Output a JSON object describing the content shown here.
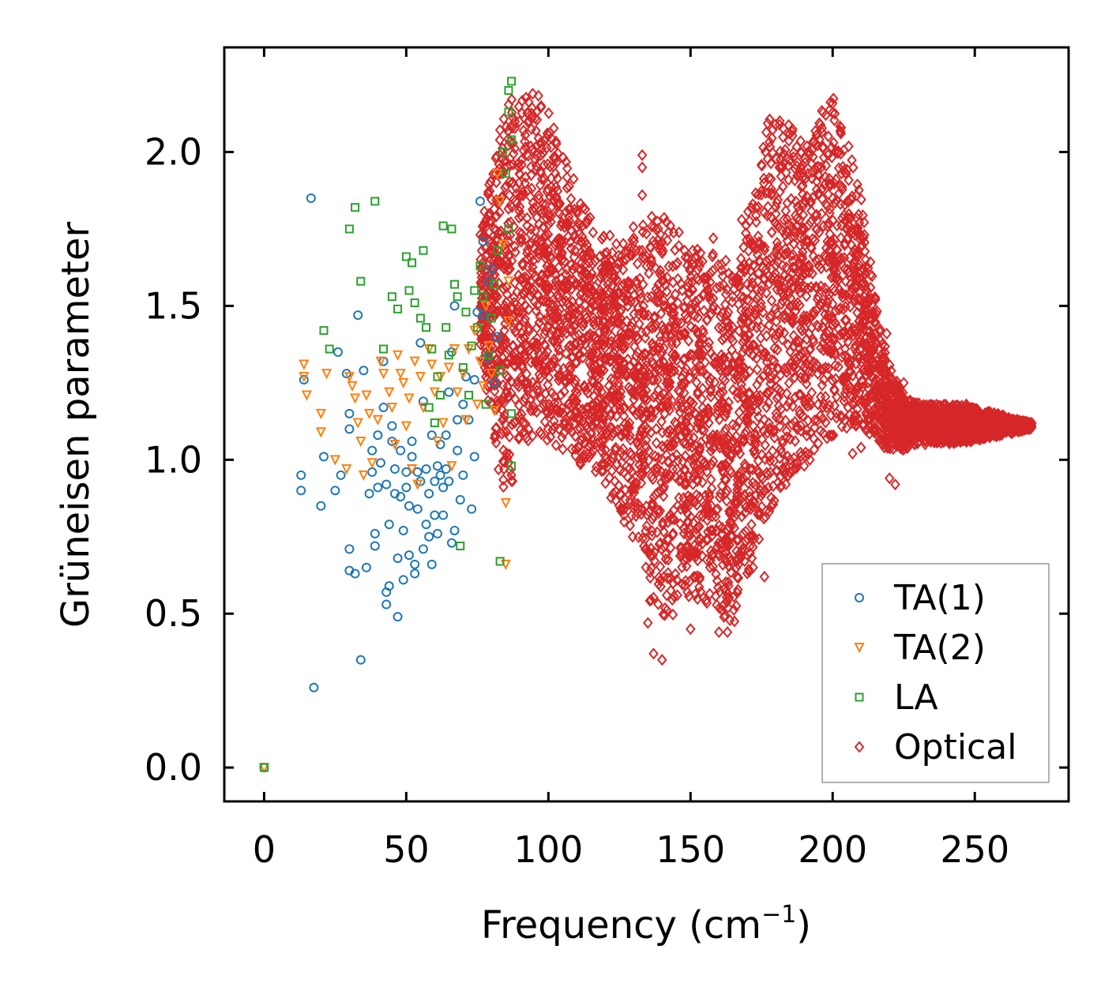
{
  "chart_data": {
    "type": "scatter",
    "title": "",
    "xlabel": "Frequency (cm",
    "xlabel_sup": "−1",
    "xlabel_close": ")",
    "ylabel": "Grüneisen parameter",
    "xlim": [
      -14,
      283
    ],
    "ylim": [
      -0.11,
      2.34
    ],
    "xticks": [
      0,
      50,
      100,
      150,
      200,
      250
    ],
    "xtick_labels": [
      "0",
      "50",
      "100",
      "150",
      "200",
      "250"
    ],
    "yticks": [
      0.0,
      0.5,
      1.0,
      1.5,
      2.0
    ],
    "ytick_labels": [
      "0.0",
      "0.5",
      "1.0",
      "1.5",
      "2.0"
    ],
    "legend_position": "lower-right",
    "series": [
      {
        "name": "TA(1)",
        "marker": "circle",
        "color": "#1f77b4",
        "points": [
          [
            0,
            0
          ],
          [
            16.5,
            1.85
          ],
          [
            17.5,
            0.26
          ],
          [
            14,
            1.26
          ],
          [
            13,
            0.95
          ],
          [
            13,
            0.9
          ],
          [
            20,
            0.85
          ],
          [
            21,
            1.01
          ],
          [
            25,
            0.9
          ],
          [
            26,
            1.35
          ],
          [
            27,
            0.95
          ],
          [
            29,
            1.28
          ],
          [
            30,
            1.15
          ],
          [
            30,
            1.1
          ],
          [
            30,
            0.71
          ],
          [
            30,
            0.64
          ],
          [
            32,
            0.63
          ],
          [
            33,
            1.47
          ],
          [
            34,
            0.35
          ],
          [
            35,
            1.29
          ],
          [
            36,
            0.65
          ],
          [
            37,
            0.89
          ],
          [
            38,
            1.03
          ],
          [
            38,
            0.96
          ],
          [
            39,
            0.76
          ],
          [
            39,
            0.72
          ],
          [
            40,
            0.91
          ],
          [
            40,
            1.08
          ],
          [
            41,
            0.99
          ],
          [
            42,
            1.32
          ],
          [
            42,
            1.17
          ],
          [
            43,
            0.53
          ],
          [
            43,
            0.92
          ],
          [
            43,
            0.57
          ],
          [
            44,
            0.79
          ],
          [
            44,
            0.59
          ],
          [
            45,
            1.06
          ],
          [
            45,
            1.11
          ],
          [
            46,
            0.89
          ],
          [
            46,
            0.97
          ],
          [
            47,
            0.49
          ],
          [
            47,
            0.68
          ],
          [
            48,
            0.88
          ],
          [
            48,
            1.03
          ],
          [
            49,
            0.61
          ],
          [
            49,
            0.77
          ],
          [
            50,
            0.91
          ],
          [
            50,
            0.96
          ],
          [
            51,
            0.69
          ],
          [
            51,
            0.85
          ],
          [
            52,
            1.06
          ],
          [
            52,
            1.01
          ],
          [
            53,
            0.63
          ],
          [
            53,
            0.66
          ],
          [
            54,
            0.84
          ],
          [
            54,
            0.96
          ],
          [
            55,
            1.38
          ],
          [
            55,
            0.93
          ],
          [
            56,
            1.19
          ],
          [
            56,
            0.71
          ],
          [
            57,
            0.79
          ],
          [
            57,
            0.97
          ],
          [
            58,
            0.75
          ],
          [
            58,
            0.89
          ],
          [
            59,
            0.66
          ],
          [
            59,
            1.08
          ],
          [
            60,
            0.93
          ],
          [
            60,
            0.82
          ],
          [
            61,
            0.98
          ],
          [
            61,
            0.76
          ],
          [
            62,
            0.95
          ],
          [
            62,
            1.05
          ],
          [
            63,
            0.91
          ],
          [
            63,
            0.82
          ],
          [
            64,
            1.08
          ],
          [
            64,
            0.97
          ],
          [
            65,
            1.22
          ],
          [
            65,
            0.93
          ],
          [
            66,
            1.35
          ],
          [
            66,
            0.73
          ],
          [
            67,
            1.5
          ],
          [
            67,
            0.77
          ],
          [
            68,
            1.03
          ],
          [
            68,
            1.13
          ],
          [
            69,
            0.87
          ],
          [
            70,
            1.18
          ],
          [
            70,
            0.95
          ],
          [
            71,
            1.27
          ],
          [
            72,
            1.13
          ],
          [
            73,
            0.84
          ],
          [
            74,
            1.26
          ],
          [
            74,
            1.01
          ],
          [
            75,
            1.48
          ],
          [
            76,
            1.84
          ],
          [
            77,
            1.71
          ],
          [
            77,
            1.47
          ],
          [
            78,
            1.33
          ],
          [
            79,
            1.58
          ],
          [
            80,
            1.62
          ],
          [
            81,
            1.25
          ],
          [
            82,
            1.4
          ]
        ]
      },
      {
        "name": "TA(2)",
        "marker": "triangle-down",
        "color": "#ff7f0e",
        "points": [
          [
            0,
            0
          ],
          [
            14,
            1.31
          ],
          [
            14,
            1.27
          ],
          [
            15,
            1.21
          ],
          [
            20,
            1.15
          ],
          [
            20,
            1.09
          ],
          [
            22,
            1.28
          ],
          [
            25,
            1.0
          ],
          [
            29,
            0.97
          ],
          [
            30,
            1.27
          ],
          [
            31,
            1.24
          ],
          [
            32,
            1.2
          ],
          [
            33,
            1.12
          ],
          [
            34,
            1.06
          ],
          [
            35,
            0.95
          ],
          [
            36,
            1.21
          ],
          [
            37,
            1.15
          ],
          [
            38,
            0.99
          ],
          [
            40,
            1.13
          ],
          [
            41,
            1.32
          ],
          [
            42,
            1.28
          ],
          [
            44,
            1.22
          ],
          [
            45,
            1.17
          ],
          [
            46,
            1.05
          ],
          [
            47,
            1.34
          ],
          [
            48,
            1.28
          ],
          [
            49,
            1.25
          ],
          [
            50,
            1.11
          ],
          [
            51,
            1.2
          ],
          [
            52,
            0.97
          ],
          [
            53,
            1.32
          ],
          [
            54,
            0.92
          ],
          [
            55,
            1.27
          ],
          [
            56,
            1.17
          ],
          [
            58,
            1.36
          ],
          [
            59,
            1.31
          ],
          [
            60,
            1.22
          ],
          [
            61,
            1.06
          ],
          [
            62,
            1.27
          ],
          [
            63,
            1.12
          ],
          [
            65,
            1.3
          ],
          [
            66,
            0.98
          ],
          [
            67,
            1.36
          ],
          [
            68,
            1.22
          ],
          [
            70,
            1.28
          ],
          [
            71,
            1.13
          ],
          [
            72,
            1.36
          ],
          [
            74,
            1.42
          ],
          [
            75,
            1.18
          ],
          [
            76,
            1.32
          ],
          [
            77,
            1.24
          ],
          [
            78,
            1.5
          ],
          [
            79,
            1.37
          ],
          [
            80,
            1.28
          ],
          [
            81,
            1.16
          ],
          [
            82,
            1.93
          ],
          [
            83,
            1.84
          ],
          [
            84,
            1.7
          ],
          [
            85,
            0.66
          ],
          [
            85,
            0.86
          ],
          [
            86,
            1.45
          ],
          [
            86,
            1.58
          ]
        ]
      },
      {
        "name": "LA",
        "marker": "square",
        "color": "#2ca02c",
        "points": [
          [
            0,
            0
          ],
          [
            21,
            1.42
          ],
          [
            23,
            1.36
          ],
          [
            30,
            1.75
          ],
          [
            32,
            1.82
          ],
          [
            34,
            1.58
          ],
          [
            39,
            1.84
          ],
          [
            42,
            1.36
          ],
          [
            45,
            1.53
          ],
          [
            47,
            1.49
          ],
          [
            50,
            1.66
          ],
          [
            51,
            1.55
          ],
          [
            52,
            1.64
          ],
          [
            53,
            1.51
          ],
          [
            55,
            1.46
          ],
          [
            56,
            1.68
          ],
          [
            57,
            1.43
          ],
          [
            58,
            1.17
          ],
          [
            59,
            1.36
          ],
          [
            60,
            1.12
          ],
          [
            61,
            1.27
          ],
          [
            62,
            1.21
          ],
          [
            63,
            1.76
          ],
          [
            64,
            1.43
          ],
          [
            65,
            1.34
          ],
          [
            66,
            1.75
          ],
          [
            67,
            1.57
          ],
          [
            68,
            1.53
          ],
          [
            69,
            0.72
          ],
          [
            70,
            1.3
          ],
          [
            71,
            1.48
          ],
          [
            72,
            1.21
          ],
          [
            73,
            1.37
          ],
          [
            74,
            1.55
          ],
          [
            75,
            1.43
          ],
          [
            76,
            1.63
          ],
          [
            77,
            1.53
          ],
          [
            78,
            1.18
          ],
          [
            79,
            1.34
          ],
          [
            80,
            1.46
          ],
          [
            81,
            1.57
          ],
          [
            82,
            1.68
          ],
          [
            83,
            0.67
          ],
          [
            83,
            1.29
          ],
          [
            84,
            2.0
          ],
          [
            85,
            1.93
          ],
          [
            86,
            2.13
          ],
          [
            86,
            2.2
          ],
          [
            86,
            1.75
          ],
          [
            87,
            2.04
          ],
          [
            87,
            2.23
          ],
          [
            87,
            1.15
          ],
          [
            87,
            0.98
          ]
        ]
      },
      {
        "name": "Optical",
        "marker": "diamond",
        "color": "#d62728",
        "points": []
      }
    ],
    "optical_envelope": {
      "upper": [
        [
          76,
          1.75
        ],
        [
          80,
          1.95
        ],
        [
          84,
          2.12
        ],
        [
          87,
          2.2
        ],
        [
          90,
          2.17
        ],
        [
          95,
          2.2
        ],
        [
          100,
          2.15
        ],
        [
          103,
          2.05
        ],
        [
          106,
          1.98
        ],
        [
          110,
          1.9
        ],
        [
          113,
          1.82
        ],
        [
          118,
          1.75
        ],
        [
          125,
          1.72
        ],
        [
          132,
          1.78
        ],
        [
          138,
          1.8
        ],
        [
          141,
          1.79
        ],
        [
          145,
          1.75
        ],
        [
          150,
          1.7
        ],
        [
          157,
          1.68
        ],
        [
          162,
          1.68
        ],
        [
          166,
          1.6
        ],
        [
          170,
          1.8
        ],
        [
          174,
          1.95
        ],
        [
          177,
          2.12
        ],
        [
          182,
          2.12
        ],
        [
          187,
          2.1
        ],
        [
          192,
          2.0
        ],
        [
          196,
          2.15
        ],
        [
          200,
          2.18
        ],
        [
          203,
          2.12
        ],
        [
          207,
          2.0
        ],
        [
          211,
          1.8
        ],
        [
          214,
          1.6
        ],
        [
          217,
          1.42
        ],
        [
          221,
          1.28
        ],
        [
          226,
          1.2
        ],
        [
          232,
          1.18
        ],
        [
          245,
          1.18
        ],
        [
          258,
          1.15
        ],
        [
          270,
          1.12
        ]
      ],
      "lower": [
        [
          76,
          1.38
        ],
        [
          80,
          1.1
        ],
        [
          84,
          0.88
        ],
        [
          87,
          0.92
        ],
        [
          92,
          1.0
        ],
        [
          96,
          1.05
        ],
        [
          100,
          1.05
        ],
        [
          106,
          1.0
        ],
        [
          112,
          0.98
        ],
        [
          118,
          0.92
        ],
        [
          124,
          0.85
        ],
        [
          130,
          0.7
        ],
        [
          135,
          0.55
        ],
        [
          140,
          0.48
        ],
        [
          145,
          0.5
        ],
        [
          150,
          0.55
        ],
        [
          155,
          0.52
        ],
        [
          160,
          0.48
        ],
        [
          165,
          0.45
        ],
        [
          170,
          0.6
        ],
        [
          175,
          0.75
        ],
        [
          180,
          0.85
        ],
        [
          186,
          0.95
        ],
        [
          192,
          1.02
        ],
        [
          198,
          1.05
        ],
        [
          204,
          1.1
        ],
        [
          210,
          1.1
        ],
        [
          216,
          1.05
        ],
        [
          222,
          1.02
        ],
        [
          230,
          1.05
        ],
        [
          240,
          1.05
        ],
        [
          250,
          1.06
        ],
        [
          260,
          1.08
        ],
        [
          270,
          1.1
        ]
      ],
      "outliers": [
        [
          133,
          1.99
        ],
        [
          133,
          1.95
        ],
        [
          133,
          1.86
        ],
        [
          135,
          0.47
        ],
        [
          137,
          0.37
        ],
        [
          140,
          0.35
        ],
        [
          150,
          0.45
        ],
        [
          160,
          0.44
        ],
        [
          163,
          0.44
        ],
        [
          87,
          0.95
        ],
        [
          185,
          1.0
        ],
        [
          190,
          0.98
        ],
        [
          192,
          1.0
        ],
        [
          198,
          1.07
        ],
        [
          207,
          1.02
        ],
        [
          210,
          1.04
        ],
        [
          220,
          0.94
        ],
        [
          222,
          0.92
        ],
        [
          176,
          0.62
        ],
        [
          172,
          0.65
        ],
        [
          168,
          1.78
        ],
        [
          158,
          1.72
        ],
        [
          88,
          1.12
        ],
        [
          93,
          1.1
        ],
        [
          215,
          1.52
        ],
        [
          219,
          1.41
        ],
        [
          225,
          1.25
        ],
        [
          247,
          1.18
        ],
        [
          255,
          1.15
        ],
        [
          265,
          1.13
        ],
        [
          270,
          1.12
        ]
      ]
    }
  }
}
